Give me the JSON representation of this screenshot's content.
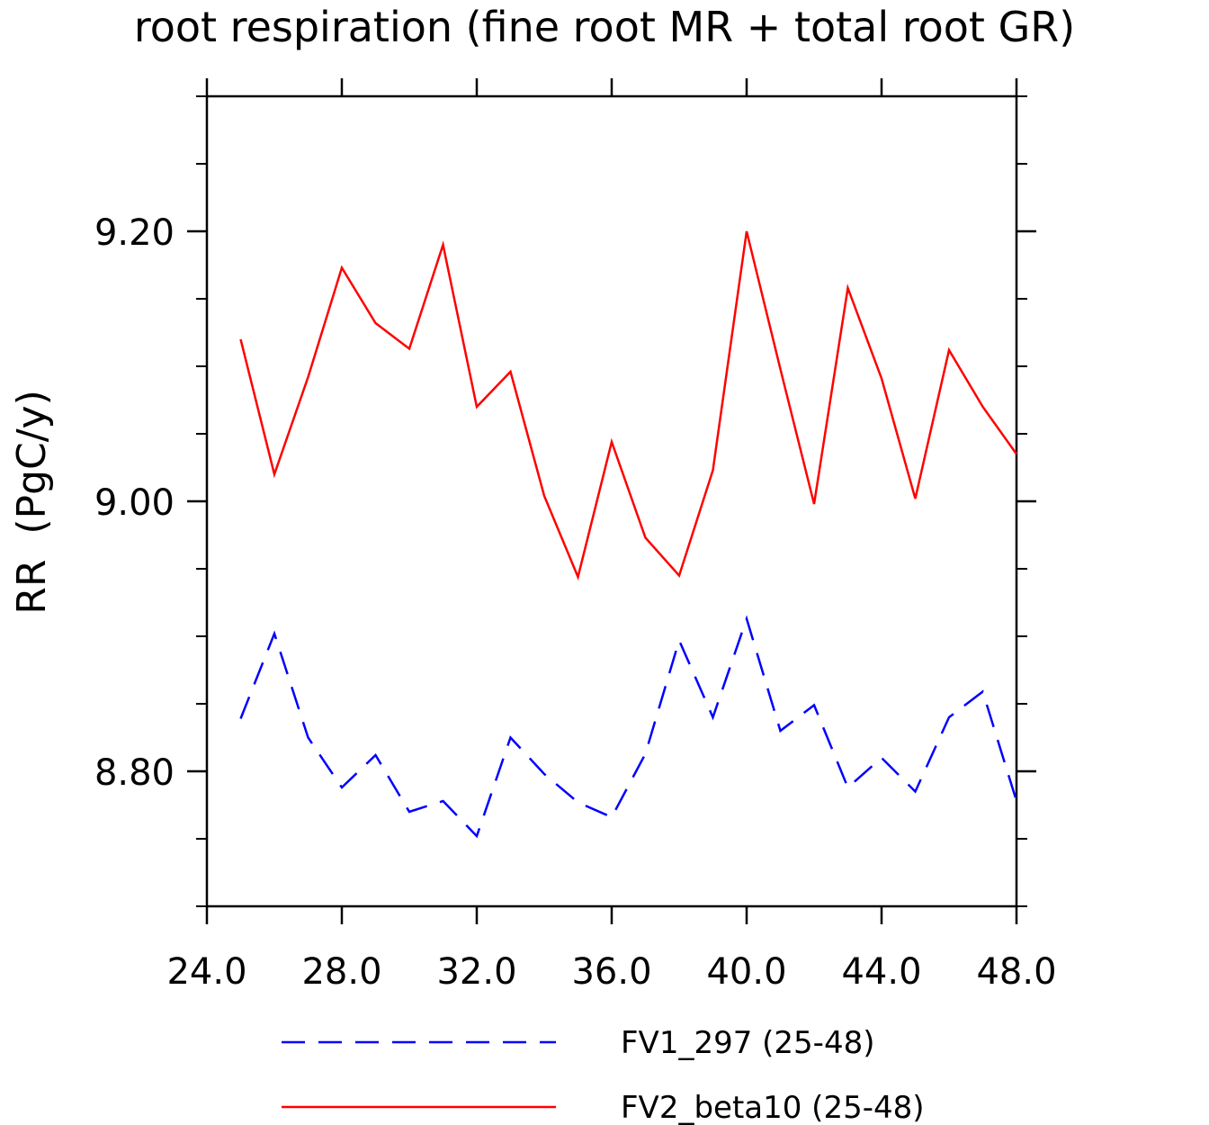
{
  "chart_data": {
    "type": "line",
    "title": "root respiration (fine root MR + total root GR)",
    "xlabel": "",
    "ylabel": "RR  (PgC/y)",
    "xlim": [
      24.0,
      48.0
    ],
    "ylim": [
      8.7,
      9.3
    ],
    "xticks": [
      24.0,
      28.0,
      32.0,
      36.0,
      40.0,
      44.0,
      48.0
    ],
    "xtick_labels": [
      "24.0",
      "28.0",
      "32.0",
      "36.0",
      "40.0",
      "44.0",
      "48.0"
    ],
    "yticks": [
      8.8,
      9.0,
      9.2
    ],
    "ytick_labels": [
      "8.80",
      "9.00",
      "9.20"
    ],
    "x_minor_step": 1.0,
    "y_minor_step": 0.05,
    "x": [
      25,
      26,
      27,
      28,
      29,
      30,
      31,
      32,
      33,
      34,
      35,
      36,
      37,
      38,
      39,
      40,
      41,
      42,
      43,
      44,
      45,
      46,
      47,
      48
    ],
    "series": [
      {
        "name": "FV1_297 (25-48)",
        "color": "#0000ff",
        "dash": "dashed",
        "values": [
          8.839,
          8.902,
          8.825,
          8.788,
          8.812,
          8.77,
          8.778,
          8.752,
          8.825,
          8.798,
          8.777,
          8.766,
          8.813,
          8.897,
          8.84,
          8.913,
          8.83,
          8.849,
          8.788,
          8.81,
          8.785,
          8.84,
          8.859,
          8.778
        ]
      },
      {
        "name": "FV2_beta10 (25-48)",
        "color": "#ff0000",
        "dash": "solid",
        "values": [
          9.12,
          9.02,
          9.092,
          9.173,
          9.132,
          9.113,
          9.19,
          9.07,
          9.096,
          9.004,
          8.944,
          9.044,
          8.973,
          8.945,
          9.023,
          9.2,
          9.098,
          8.998,
          9.158,
          9.091,
          9.002,
          9.112,
          9.07,
          9.035
        ]
      }
    ],
    "legend_position": "bottom-center"
  }
}
